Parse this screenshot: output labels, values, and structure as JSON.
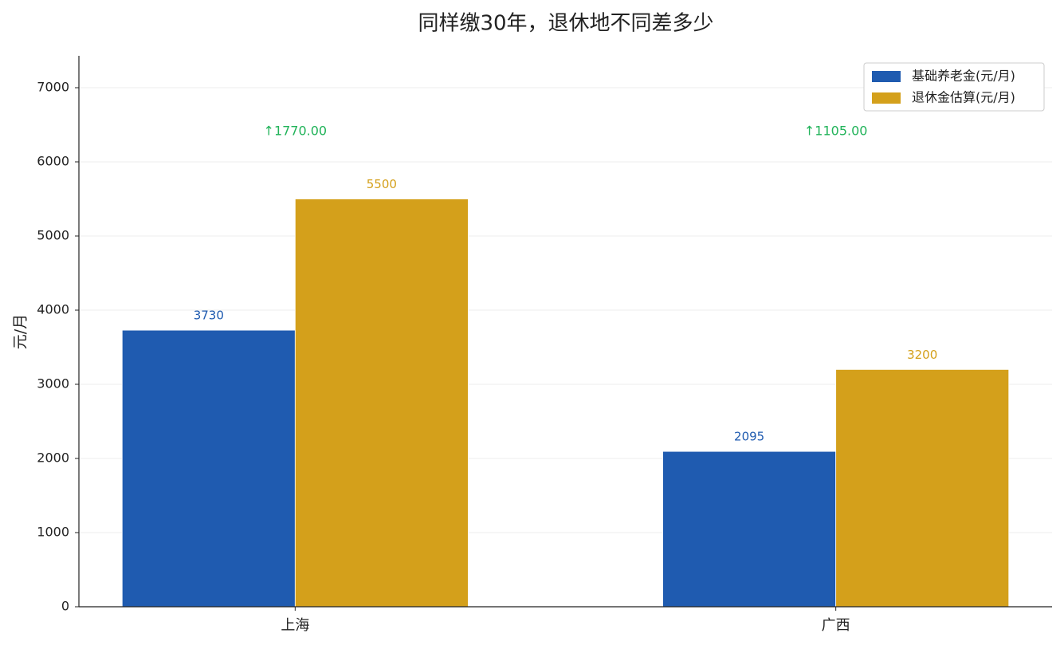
{
  "chart_data": {
    "type": "bar",
    "title": "同样缴30年，退休地不同差多少",
    "ylabel": "元/月",
    "categories": [
      "上海",
      "广西"
    ],
    "series": [
      {
        "name": "基础养老金(元/月)",
        "color": "#1f5bb0",
        "values": [
          3730,
          2095
        ]
      },
      {
        "name": "退休金估算(元/月)",
        "color": "#d4a01b",
        "values": [
          5500,
          3200
        ]
      }
    ],
    "annotations": [
      "↑1770.00",
      "↑1105.00"
    ],
    "annotation_color": "#22b35a",
    "ylim": [
      0,
      7430
    ],
    "yticks": [
      0,
      1000,
      2000,
      3000,
      4000,
      5000,
      6000,
      7000
    ],
    "grid": true,
    "legend": "upper right"
  }
}
